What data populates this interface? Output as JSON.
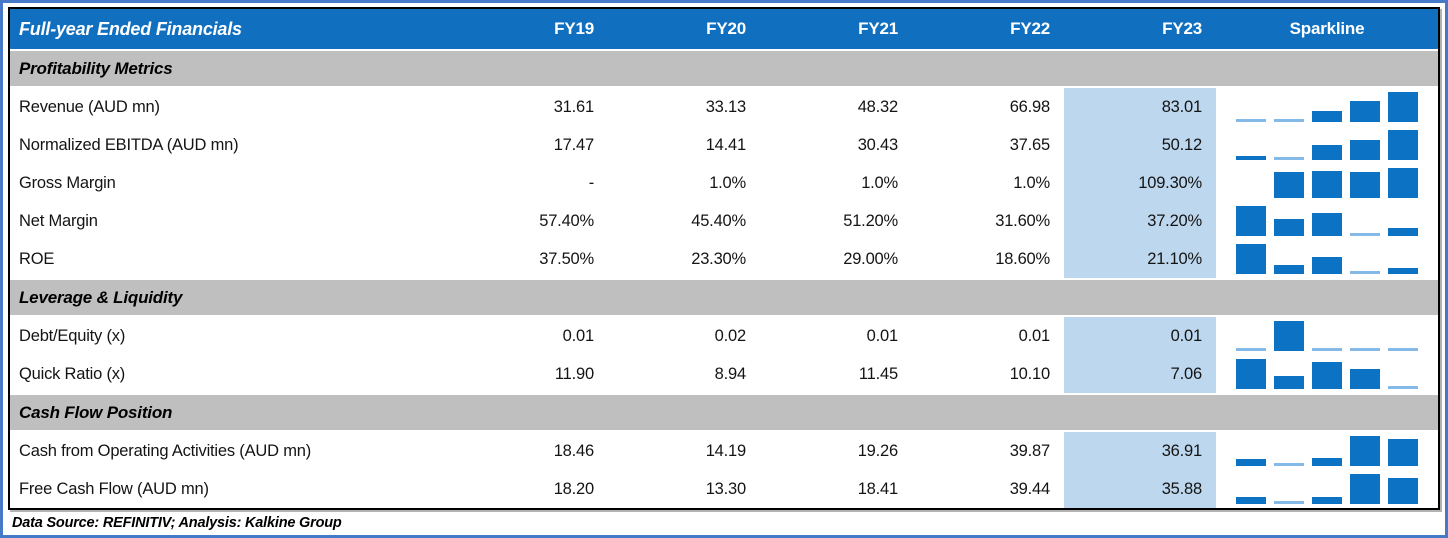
{
  "title": "Full-year Ended Financials",
  "years": [
    "FY19",
    "FY20",
    "FY21",
    "FY22",
    "FY23"
  ],
  "sparkline_header": "Sparkline",
  "highlight_column": "FY23",
  "sections": [
    {
      "title": "Profitability Metrics",
      "rows": [
        {
          "label": "Revenue (AUD mn)",
          "display": [
            "31.61",
            "33.13",
            "48.32",
            "66.98",
            "83.01"
          ],
          "values": [
            31.61,
            33.13,
            48.32,
            66.98,
            83.01
          ]
        },
        {
          "label": "Normalized EBITDA (AUD mn)",
          "display": [
            "17.47",
            "14.41",
            "30.43",
            "37.65",
            "50.12"
          ],
          "values": [
            17.47,
            14.41,
            30.43,
            37.65,
            50.12
          ]
        },
        {
          "label": "Gross Margin",
          "display": [
            "-",
            "1.0%",
            "1.0%",
            "1.0%",
            "109.30%"
          ],
          "values": [
            null,
            1.0,
            1.0,
            1.0,
            109.3
          ],
          "spark_override": [
            null,
            0.87,
            0.9,
            0.87,
            1.0
          ]
        },
        {
          "label": "Net Margin",
          "display": [
            "57.40%",
            "45.40%",
            "51.20%",
            "31.60%",
            "37.20%"
          ],
          "values": [
            57.4,
            45.4,
            51.2,
            31.6,
            37.2
          ]
        },
        {
          "label": "ROE",
          "display": [
            "37.50%",
            "23.30%",
            "29.00%",
            "18.60%",
            "21.10%"
          ],
          "values": [
            37.5,
            23.3,
            29.0,
            18.6,
            21.1
          ]
        }
      ]
    },
    {
      "title": "Leverage & Liquidity",
      "rows": [
        {
          "label": "Debt/Equity (x)",
          "display": [
            "0.01",
            "0.02",
            "0.01",
            "0.01",
            "0.01"
          ],
          "values": [
            0.01,
            0.02,
            0.01,
            0.01,
            0.01
          ]
        },
        {
          "label": "Quick Ratio (x)",
          "display": [
            "11.90",
            "8.94",
            "11.45",
            "10.10",
            "7.06"
          ],
          "values": [
            11.9,
            8.94,
            11.45,
            10.1,
            7.06
          ]
        }
      ]
    },
    {
      "title": "Cash Flow Position",
      "rows": [
        {
          "label": "Cash from Operating Activities (AUD mn)",
          "display": [
            "18.46",
            "14.19",
            "19.26",
            "39.87",
            "36.91"
          ],
          "values": [
            18.46,
            14.19,
            19.26,
            39.87,
            36.91
          ]
        },
        {
          "label": "Free Cash Flow (AUD mn)",
          "display": [
            "18.20",
            "13.30",
            "18.41",
            "39.44",
            "35.88"
          ],
          "values": [
            18.2,
            13.3,
            18.41,
            39.44,
            35.88
          ]
        }
      ]
    }
  ],
  "footer": "Data Source: REFINITIV; Analysis: Kalkine Group",
  "colors": {
    "header_bg": "#1070BF",
    "header_text": "#FFFFFF",
    "section_bg": "#BFBFBF",
    "fy23_highlight": "#BDD7EE",
    "sparkline_dark": "#0B72C4",
    "sparkline_low": "#85B9E8",
    "outer_frame": "#4679C7",
    "table_border": "#000000"
  },
  "chart_data": {
    "type": "table",
    "title": "Full-year Ended Financials",
    "categories": [
      "FY19",
      "FY20",
      "FY21",
      "FY22",
      "FY23"
    ],
    "series": [
      {
        "name": "Revenue (AUD mn)",
        "values": [
          31.61,
          33.13,
          48.32,
          66.98,
          83.01
        ]
      },
      {
        "name": "Normalized EBITDA (AUD mn)",
        "values": [
          17.47,
          14.41,
          30.43,
          37.65,
          50.12
        ]
      },
      {
        "name": "Gross Margin %",
        "values": [
          null,
          1.0,
          1.0,
          1.0,
          109.3
        ]
      },
      {
        "name": "Net Margin %",
        "values": [
          57.4,
          45.4,
          51.2,
          31.6,
          37.2
        ]
      },
      {
        "name": "ROE %",
        "values": [
          37.5,
          23.3,
          29.0,
          18.6,
          21.1
        ]
      },
      {
        "name": "Debt/Equity (x)",
        "values": [
          0.01,
          0.02,
          0.01,
          0.01,
          0.01
        ]
      },
      {
        "name": "Quick Ratio (x)",
        "values": [
          11.9,
          8.94,
          11.45,
          10.1,
          7.06
        ]
      },
      {
        "name": "Cash from Operating Activities (AUD mn)",
        "values": [
          18.46,
          14.19,
          19.26,
          39.87,
          36.91
        ]
      },
      {
        "name": "Free Cash Flow (AUD mn)",
        "values": [
          18.2,
          13.3,
          18.41,
          39.44,
          35.88
        ]
      }
    ],
    "sparkline_type": "bar",
    "sparkline_scaling": "per-row min-max, minimum value rendered as light-blue low-point sliver"
  }
}
